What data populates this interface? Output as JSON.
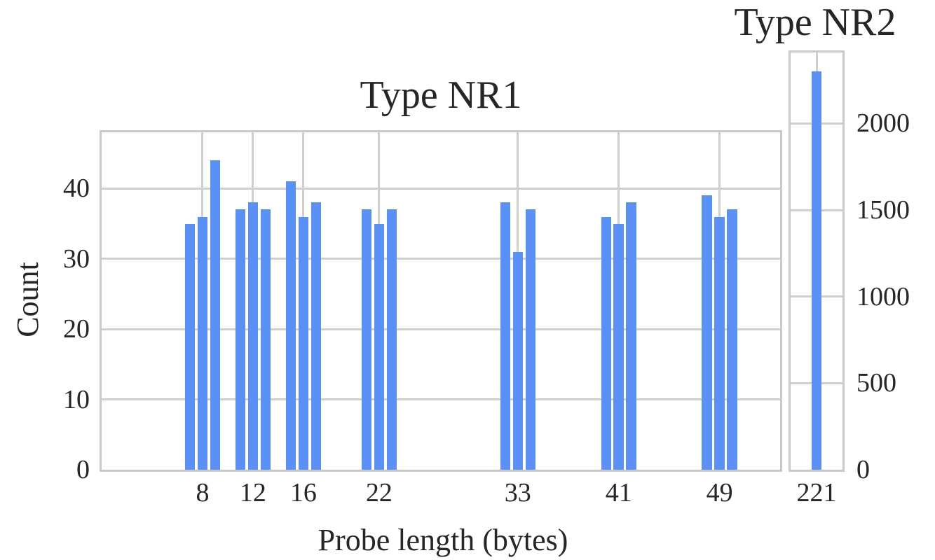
{
  "figure": {
    "background": "#ffffff",
    "bar_color": "#5991f7",
    "grid_color": "#d0d0d0",
    "frame_color": "#c9c9c9",
    "text_color": "#262626"
  },
  "chart_data": [
    {
      "type": "bar",
      "title": "Type NR1",
      "xlabel": "Probe length (bytes)",
      "ylabel": "Count",
      "grid": true,
      "legend_position": "none",
      "xticks": [
        8,
        12,
        16,
        22,
        33,
        41,
        49
      ],
      "yticks": [
        0,
        10,
        20,
        30,
        40
      ],
      "yticks_side": "left",
      "xlim": [
        0,
        53.8
      ],
      "ylim": [
        0,
        48
      ],
      "bar_width_units": 0.8,
      "bars": [
        {
          "x": 7,
          "count": 35
        },
        {
          "x": 8,
          "count": 36
        },
        {
          "x": 9,
          "count": 44
        },
        {
          "x": 11,
          "count": 37
        },
        {
          "x": 12,
          "count": 38
        },
        {
          "x": 13,
          "count": 37
        },
        {
          "x": 15,
          "count": 41
        },
        {
          "x": 16,
          "count": 36
        },
        {
          "x": 17,
          "count": 38
        },
        {
          "x": 21,
          "count": 37
        },
        {
          "x": 22,
          "count": 35
        },
        {
          "x": 23,
          "count": 37
        },
        {
          "x": 32,
          "count": 38
        },
        {
          "x": 33,
          "count": 31
        },
        {
          "x": 34,
          "count": 37
        },
        {
          "x": 40,
          "count": 36
        },
        {
          "x": 41,
          "count": 35
        },
        {
          "x": 42,
          "count": 38
        },
        {
          "x": 48,
          "count": 39
        },
        {
          "x": 49,
          "count": 36
        },
        {
          "x": 50,
          "count": 37
        }
      ]
    },
    {
      "type": "bar",
      "title": "Type NR2",
      "xlabel": "",
      "ylabel": "",
      "grid": true,
      "legend_position": "none",
      "xticks": [
        221
      ],
      "yticks": [
        0,
        500,
        1000,
        1500,
        2000
      ],
      "yticks_side": "right",
      "xlim": [
        219,
        223
      ],
      "ylim": [
        0,
        2410
      ],
      "bar_width_units": 0.8,
      "bars": [
        {
          "x": 221,
          "count": 2300
        }
      ]
    }
  ]
}
